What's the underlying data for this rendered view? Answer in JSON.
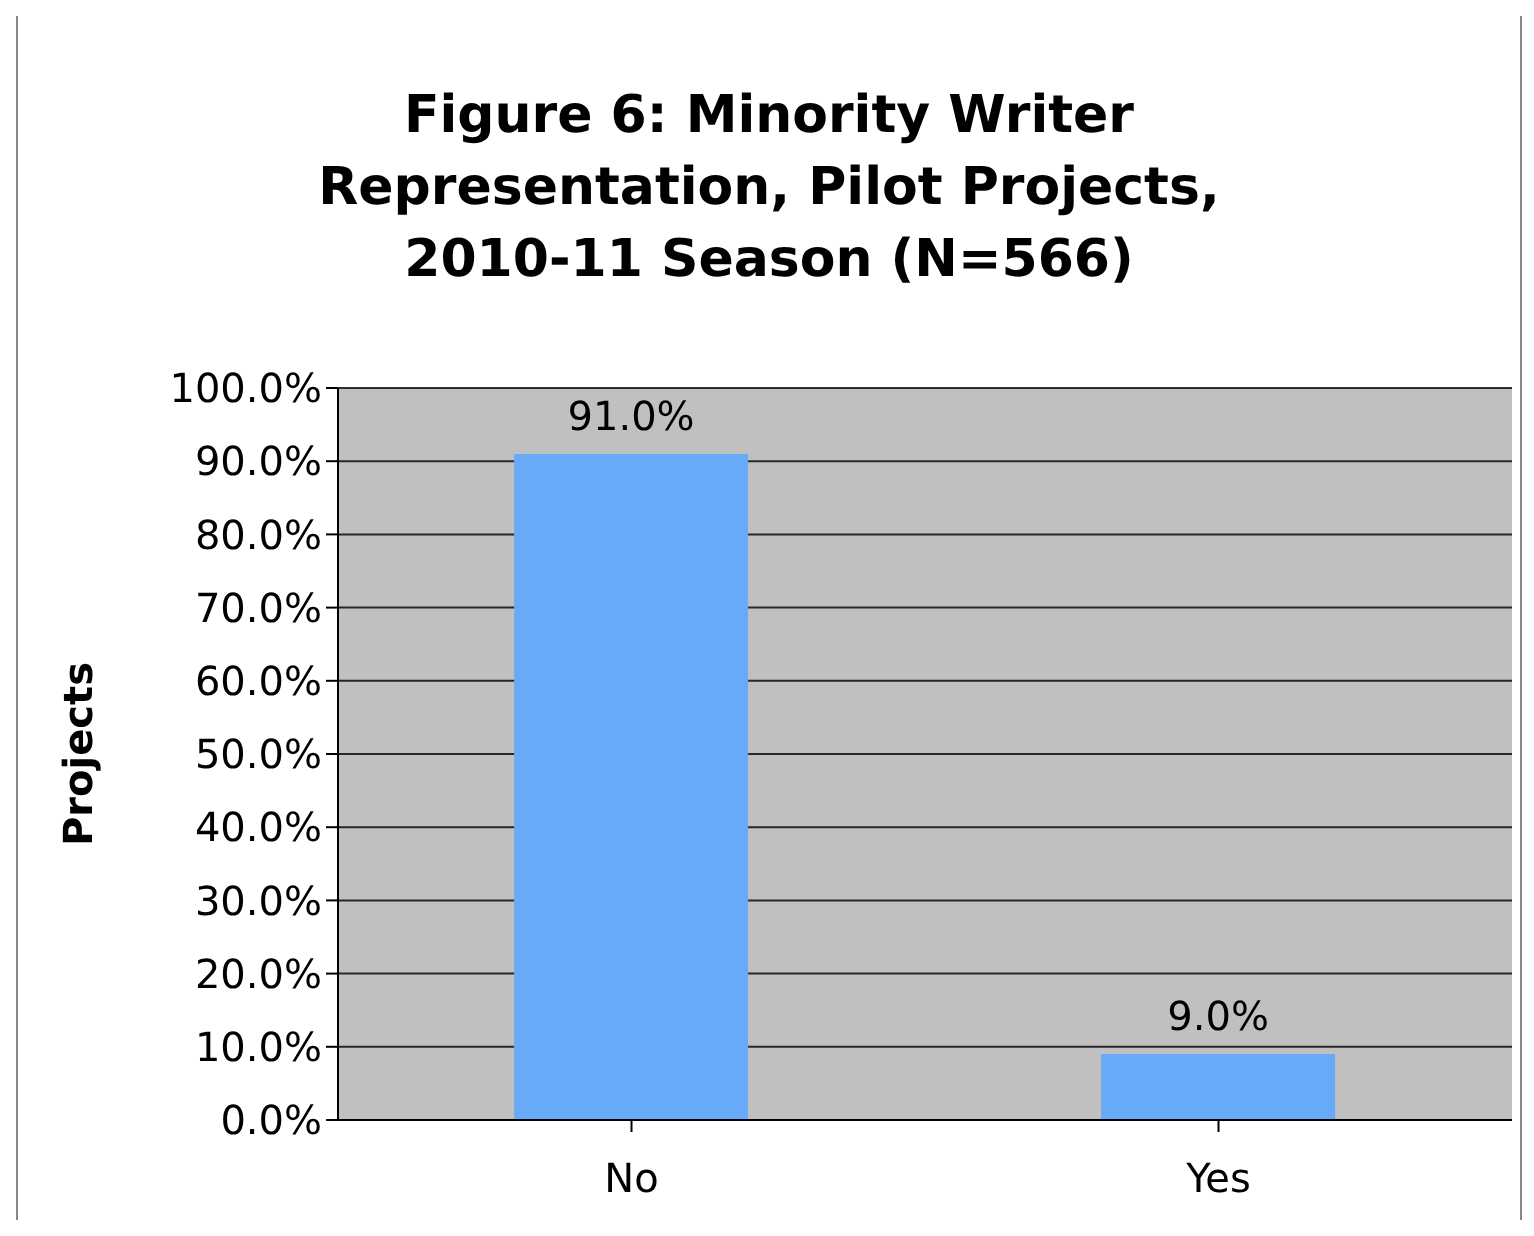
{
  "chart_data": {
    "type": "bar",
    "title": "Figure 6:  Minority Writer Representation, Pilot Projects, 2010-11 Season (N=566)",
    "ylabel": "Projects",
    "categories": [
      "No",
      "Yes"
    ],
    "values": [
      91,
      9
    ],
    "value_labels": [
      "91.0%",
      "9.0%"
    ],
    "color": "#66aaf8",
    "ylim": [
      0,
      100
    ],
    "yticks": [
      {
        "value": 0,
        "label": "0.0%"
      },
      {
        "value": 10,
        "label": "10.0%"
      },
      {
        "value": 20,
        "label": "20.0%"
      },
      {
        "value": 30,
        "label": "30.0%"
      },
      {
        "value": 40,
        "label": "40.0%"
      },
      {
        "value": 50,
        "label": "50.0%"
      },
      {
        "value": 60,
        "label": "60.0%"
      },
      {
        "value": 70,
        "label": "70.0%"
      },
      {
        "value": 80,
        "label": "80.0%"
      },
      {
        "value": 90,
        "label": "90.0%"
      },
      {
        "value": 100,
        "label": "100.0%"
      }
    ],
    "grid": "y",
    "legend": false
  }
}
